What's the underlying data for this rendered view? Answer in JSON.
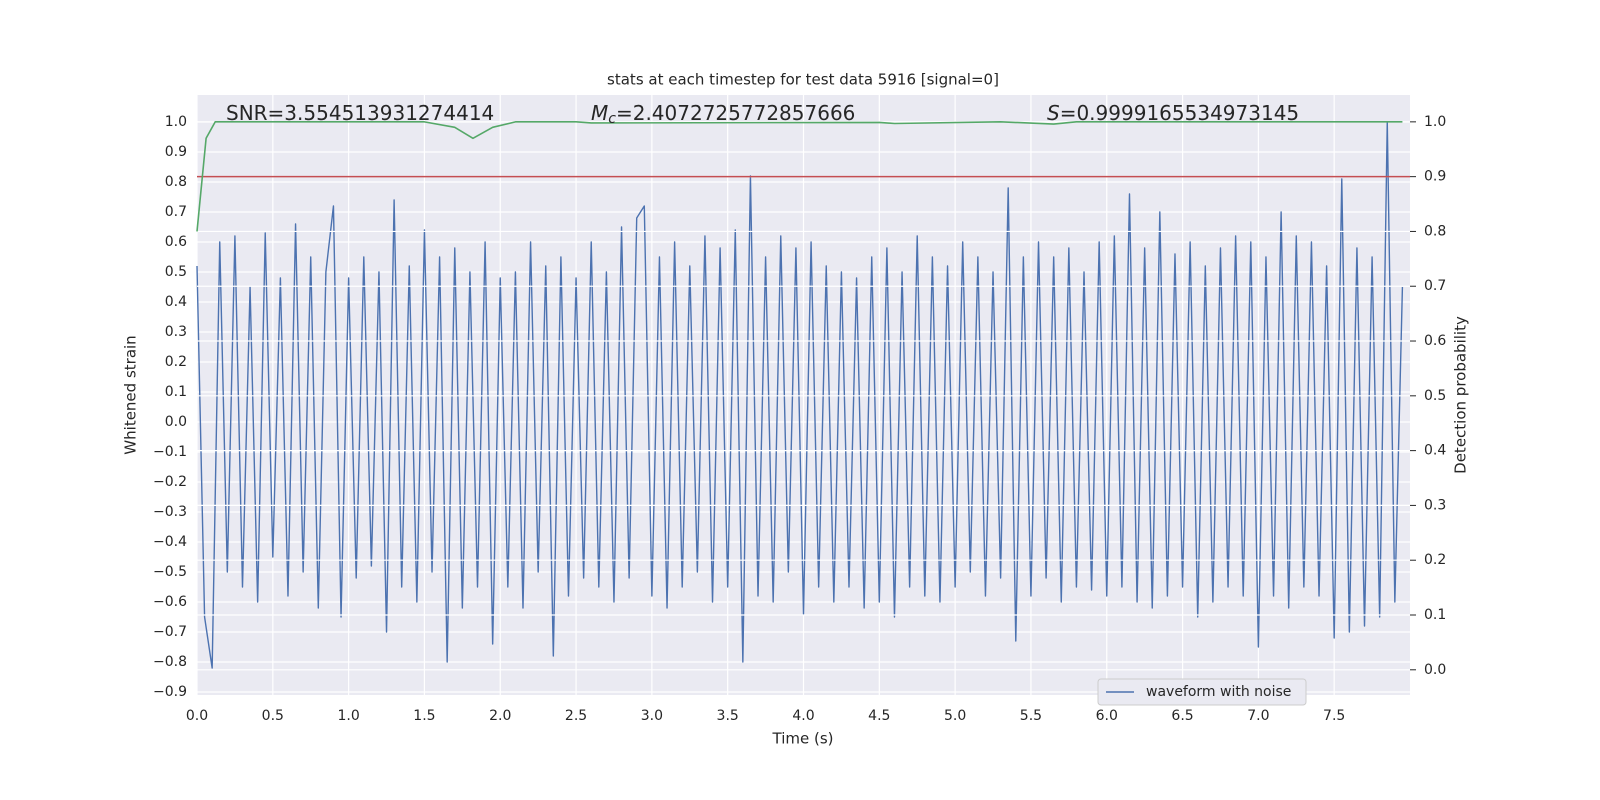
{
  "chart_data": {
    "type": "line",
    "title": "stats at each timestep for test data 5916 [signal=0]",
    "xlabel": "Time (s)",
    "ylabel": "Whitened strain",
    "y2label": "Detection probability",
    "annotations": [
      {
        "text": "SNR=3.554513931274414"
      },
      {
        "symbol": "M",
        "subscript": "c",
        "text": "=2.4072725772857666"
      },
      {
        "symbol": "S",
        "text": "=0.9999165534973145"
      }
    ],
    "xlim": [
      0,
      8.0
    ],
    "ylim": [
      -0.91,
      1.09
    ],
    "y2lim": [
      -0.046,
      1.049
    ],
    "xticks": [
      {
        "value": 0,
        "label": "0.0"
      },
      0.5,
      {
        "value": 1,
        "label": "1.0"
      },
      1.5,
      {
        "value": 2,
        "label": "2.0"
      },
      2.5,
      {
        "value": 3,
        "label": "3.0"
      },
      3.5,
      {
        "value": 4,
        "label": "4.0"
      },
      4.5,
      {
        "value": 5,
        "label": "5.0"
      },
      5.5,
      {
        "value": 6,
        "label": "6.0"
      },
      6.5,
      {
        "value": 7,
        "label": "7.0"
      },
      7.5
    ],
    "yticks": [
      {
        "value": -0.9,
        "label": "−0.9"
      },
      {
        "value": -0.8,
        "label": "−0.8"
      },
      {
        "value": -0.7,
        "label": "−0.7"
      },
      {
        "value": -0.6,
        "label": "−0.6"
      },
      {
        "value": -0.5,
        "label": "−0.5"
      },
      {
        "value": -0.4,
        "label": "−0.4"
      },
      {
        "value": -0.3,
        "label": "−0.3"
      },
      {
        "value": -0.2,
        "label": "−0.2"
      },
      {
        "value": -0.1,
        "label": "−0.1"
      },
      {
        "value": 0,
        "label": "0.0"
      },
      0.1,
      0.2,
      0.3,
      0.4,
      0.5,
      0.6,
      0.7,
      0.8,
      0.9,
      {
        "value": 1,
        "label": "1.0"
      }
    ],
    "y2ticks": [
      {
        "value": 0,
        "label": "0.0"
      },
      0.1,
      0.2,
      0.3,
      0.4,
      0.5,
      0.6,
      0.7,
      0.8,
      0.9,
      {
        "value": 1,
        "label": "1.0"
      }
    ],
    "grid": true,
    "legend": "lower right",
    "threshold": {
      "value": 0.9,
      "color": "#c44e52",
      "axis": "y2"
    },
    "series": [
      {
        "name": "waveform with noise",
        "color": "#4c72b0",
        "axis": "y",
        "x": [
          0,
          0.05,
          0.1,
          0.15,
          0.2,
          0.25,
          0.3,
          0.35,
          0.4,
          0.45,
          0.5,
          0.55,
          0.6,
          0.65,
          0.7,
          0.75,
          0.8,
          0.85,
          0.9,
          0.95,
          1,
          1.05,
          1.1,
          1.15,
          1.2,
          1.25,
          1.3,
          1.35,
          1.4,
          1.45,
          1.5,
          1.55,
          1.6,
          1.65,
          1.7,
          1.75,
          1.8,
          1.85,
          1.9,
          1.95,
          2,
          2.05,
          2.1,
          2.15,
          2.2,
          2.25,
          2.3,
          2.35,
          2.4,
          2.45,
          2.5,
          2.55,
          2.6,
          2.65,
          2.7,
          2.75,
          2.8,
          2.85,
          2.9,
          2.95,
          3,
          3.05,
          3.1,
          3.15,
          3.2,
          3.25,
          3.3,
          3.35,
          3.4,
          3.45,
          3.5,
          3.55,
          3.6,
          3.65,
          3.7,
          3.75,
          3.8,
          3.85,
          3.9,
          3.95,
          4,
          4.05,
          4.1,
          4.15,
          4.2,
          4.25,
          4.3,
          4.35,
          4.4,
          4.45,
          4.5,
          4.55,
          4.6,
          4.65,
          4.7,
          4.75,
          4.8,
          4.85,
          4.9,
          4.95,
          5,
          5.05,
          5.1,
          5.15,
          5.2,
          5.25,
          5.3,
          5.35,
          5.4,
          5.45,
          5.5,
          5.55,
          5.6,
          5.65,
          5.7,
          5.75,
          5.8,
          5.85,
          5.9,
          5.95,
          6,
          6.05,
          6.1,
          6.15,
          6.2,
          6.25,
          6.3,
          6.35,
          6.4,
          6.45,
          6.5,
          6.55,
          6.6,
          6.65,
          6.7,
          6.75,
          6.8,
          6.85,
          6.9,
          6.95,
          7,
          7.05,
          7.1,
          7.15,
          7.2,
          7.25,
          7.3,
          7.35,
          7.4,
          7.45,
          7.5,
          7.55,
          7.6,
          7.65,
          7.7,
          7.75,
          7.8,
          7.85,
          7.9,
          7.95
        ],
        "values": [
          0.52,
          -0.65,
          -0.82,
          0.6,
          -0.5,
          0.62,
          -0.55,
          0.45,
          -0.6,
          0.63,
          -0.45,
          0.48,
          -0.58,
          0.66,
          -0.5,
          0.55,
          -0.62,
          0.5,
          0.72,
          -0.65,
          0.48,
          -0.52,
          0.55,
          -0.48,
          0.5,
          -0.7,
          0.74,
          -0.55,
          0.52,
          -0.6,
          0.64,
          -0.5,
          0.55,
          -0.8,
          0.58,
          -0.62,
          0.5,
          -0.55,
          0.6,
          -0.74,
          0.48,
          -0.55,
          0.5,
          -0.62,
          0.6,
          -0.5,
          0.52,
          -0.78,
          0.55,
          -0.58,
          0.48,
          -0.52,
          0.6,
          -0.55,
          0.5,
          -0.6,
          0.65,
          -0.52,
          0.68,
          0.72,
          -0.58,
          0.55,
          -0.62,
          0.6,
          -0.55,
          0.52,
          -0.5,
          0.62,
          -0.6,
          0.58,
          -0.55,
          0.64,
          -0.8,
          0.82,
          -0.58,
          0.55,
          -0.6,
          0.62,
          -0.5,
          0.58,
          -0.64,
          0.6,
          -0.55,
          0.52,
          -0.6,
          0.5,
          -0.55,
          0.48,
          -0.62,
          0.55,
          -0.6,
          0.58,
          -0.65,
          0.5,
          -0.55,
          0.62,
          -0.58,
          0.55,
          -0.6,
          0.52,
          -0.55,
          0.6,
          -0.5,
          0.55,
          -0.58,
          0.5,
          -0.52,
          0.78,
          -0.73,
          0.55,
          -0.58,
          0.6,
          -0.52,
          0.55,
          -0.6,
          0.58,
          -0.55,
          0.5,
          -0.56,
          0.6,
          -0.58,
          0.62,
          -0.55,
          0.76,
          -0.6,
          0.58,
          -0.62,
          0.7,
          -0.58,
          0.56,
          -0.55,
          0.6,
          -0.65,
          0.52,
          -0.6,
          0.58,
          -0.55,
          0.62,
          -0.58,
          0.6,
          -0.75,
          0.55,
          -0.58,
          0.7,
          -0.62,
          0.62,
          -0.55,
          0.6,
          -0.58,
          0.52,
          -0.72,
          0.81,
          -0.7,
          0.58,
          -0.68,
          0.55,
          -0.65,
          1.0,
          -0.6,
          0.45
        ]
      },
      {
        "color": "#55a868",
        "axis": "y2",
        "x": [
          0,
          0.06,
          0.12,
          0.5,
          1.5,
          1.7,
          1.82,
          1.95,
          2.1,
          2.5,
          2.6,
          4.5,
          4.6,
          5.3,
          5.65,
          5.8,
          7.95
        ],
        "values": [
          0.8,
          0.97,
          1.0,
          1.0,
          1.0,
          0.99,
          0.97,
          0.99,
          1.0,
          1.0,
          0.998,
          0.999,
          0.997,
          1.0,
          0.996,
          1.0,
          1.0
        ]
      }
    ]
  }
}
